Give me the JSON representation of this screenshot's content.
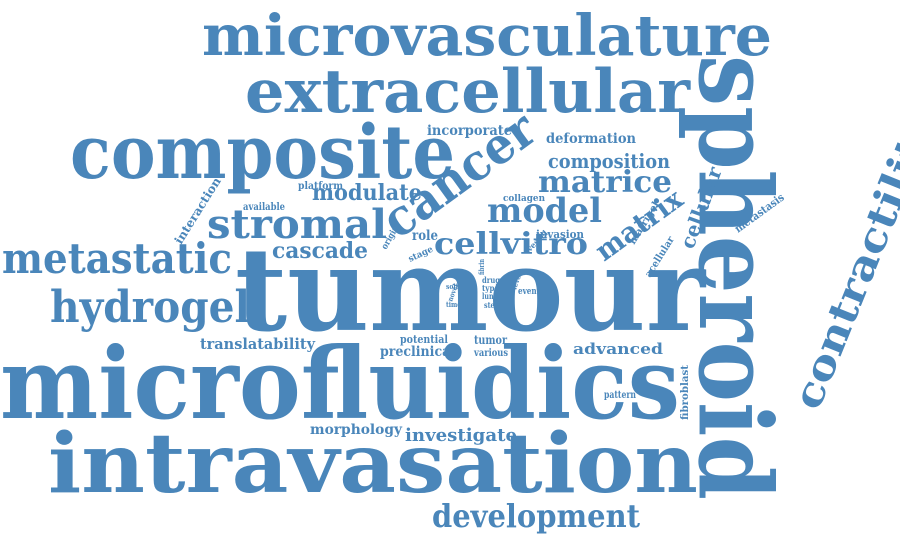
{
  "color": "#4a86ba",
  "words": [
    "microvasculature",
    "extracellular",
    "composite",
    "spheroid",
    "tumour",
    "microfluidics",
    "intravasation",
    "contractility",
    "cancer",
    "metastatic",
    "hydrogel",
    "stromal",
    "development",
    "model",
    "matrice",
    "cellvitro",
    "matrix",
    "cellular",
    "modulate",
    "cascade",
    "composition",
    "incorporate",
    "deformation",
    "translatability",
    "advanced",
    "investigate",
    "morphology",
    "interaction",
    "platform",
    "available",
    "collagen",
    "matrigel",
    "metastasis",
    "acellular",
    "fibroblast",
    "role",
    "origin",
    "stage",
    "invasion",
    "vessel",
    "potential",
    "preclinical",
    "tumor",
    "various",
    "pattern",
    "fibrin",
    "drug",
    "type",
    "lung",
    "solid",
    "novel",
    "time",
    "level",
    "event",
    "step",
    "vivo"
  ]
}
